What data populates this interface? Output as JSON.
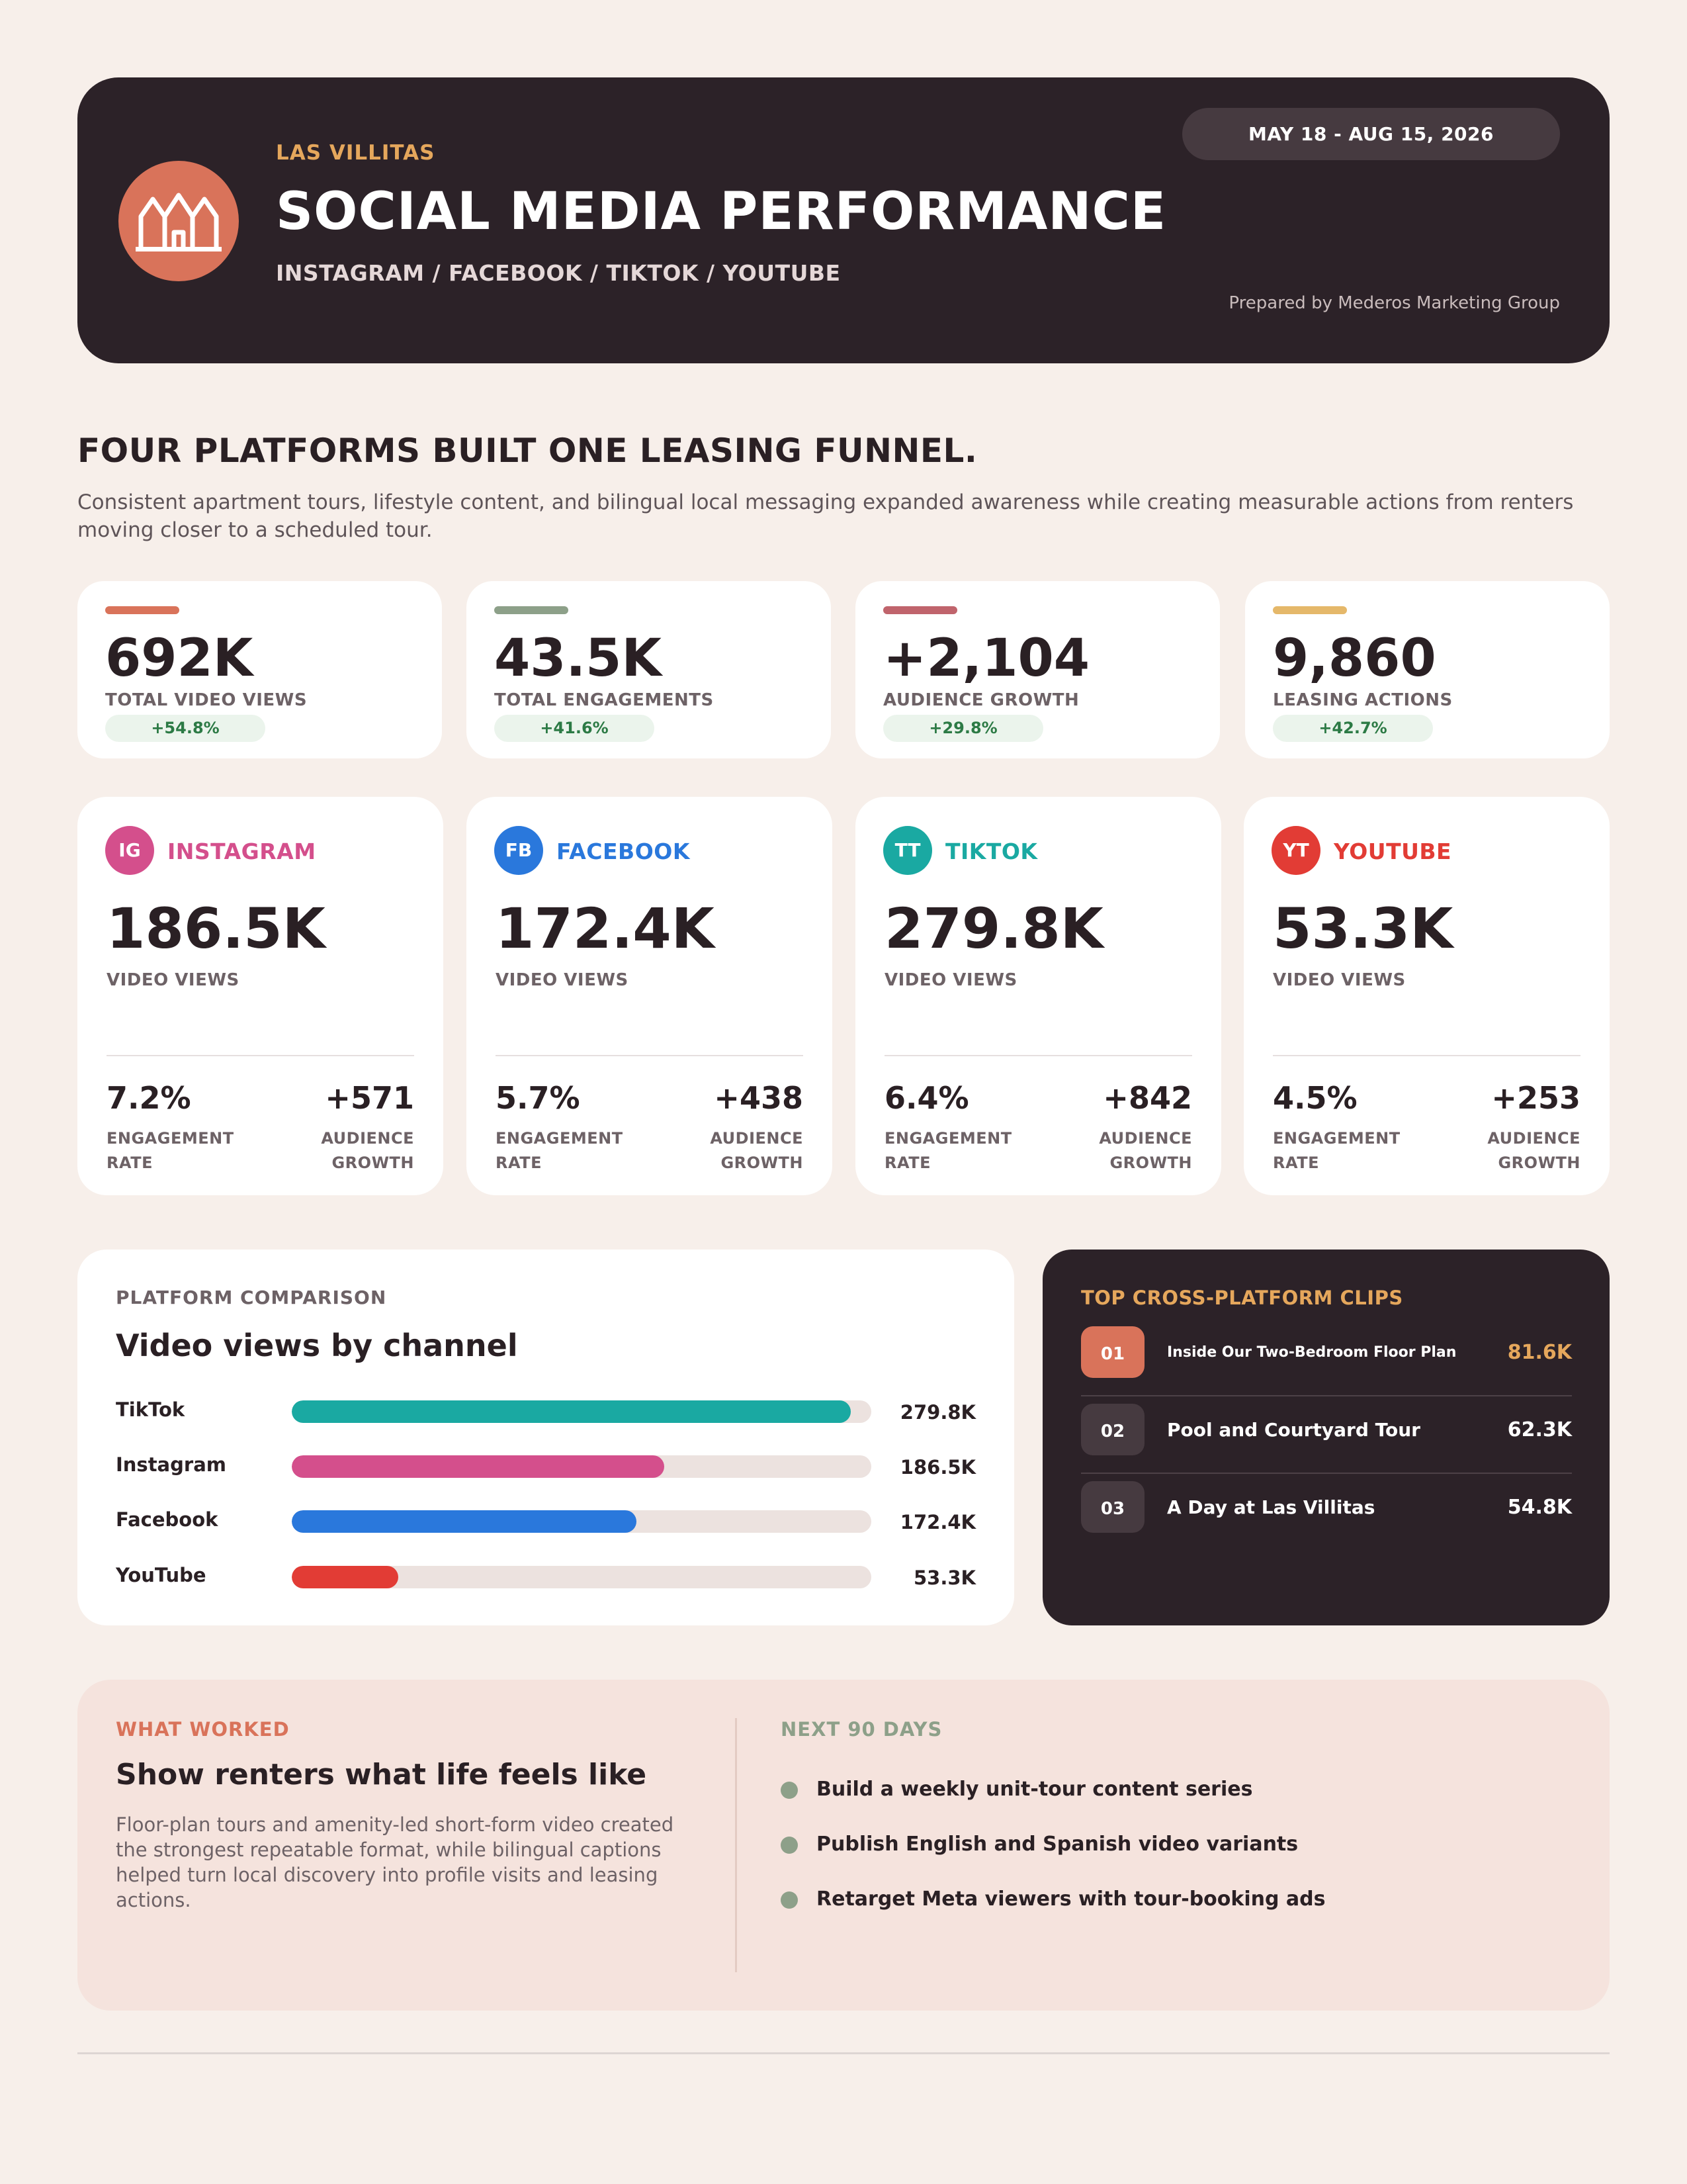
{
  "header": {
    "brand": "LAS VILLITAS",
    "title": "SOCIAL MEDIA PERFORMANCE",
    "subtitle": "INSTAGRAM / FACEBOOK / TIKTOK / YOUTUBE",
    "date_range": "MAY 18 - AUG 15, 2026",
    "prepared_by": "Prepared by Mederos Marketing Group",
    "logo_icon": "houses-icon",
    "colors": {
      "background": "#2c2228",
      "accent": "#d9735a",
      "brand": "#e5a75c"
    }
  },
  "intro": {
    "headline": "FOUR PLATFORMS BUILT ONE LEASING FUNNEL.",
    "body": "Consistent apartment tours, lifestyle content, and bilingual local messaging expanded awareness while creating measurable actions from renters moving closer to a scheduled tour."
  },
  "kpis": [
    {
      "value": "692K",
      "label": "TOTAL VIDEO VIEWS",
      "delta": "+54.8%",
      "color": "#d9735a"
    },
    {
      "value": "43.5K",
      "label": "TOTAL ENGAGEMENTS",
      "delta": "+41.6%",
      "color": "#8da089"
    },
    {
      "value": "+2,104",
      "label": "AUDIENCE GROWTH",
      "delta": "+29.8%",
      "color": "#c0646c"
    },
    {
      "value": "9,860",
      "label": "LEASING ACTIONS",
      "delta": "+42.7%",
      "color": "#e5b86a"
    }
  ],
  "platforms": [
    {
      "badge": "IG",
      "name": "INSTAGRAM",
      "color": "#d44f8c",
      "views": "186.5K",
      "views_label": "VIDEO VIEWS",
      "engagement_rate": "7.2%",
      "engagement_label": "ENGAGEMENT RATE",
      "audience_growth": "+571",
      "audience_label": "AUDIENCE GROWTH"
    },
    {
      "badge": "FB",
      "name": "FACEBOOK",
      "color": "#2a78dc",
      "views": "172.4K",
      "views_label": "VIDEO VIEWS",
      "engagement_rate": "5.7%",
      "engagement_label": "ENGAGEMENT RATE",
      "audience_growth": "+438",
      "audience_label": "AUDIENCE GROWTH"
    },
    {
      "badge": "TT",
      "name": "TIKTOK",
      "color": "#1aa9a2",
      "views": "279.8K",
      "views_label": "VIDEO VIEWS",
      "engagement_rate": "6.4%",
      "engagement_label": "ENGAGEMENT RATE",
      "audience_growth": "+842",
      "audience_label": "AUDIENCE GROWTH"
    },
    {
      "badge": "YT",
      "name": "YOUTUBE",
      "color": "#e23c35",
      "views": "53.3K",
      "views_label": "VIDEO VIEWS",
      "engagement_rate": "4.5%",
      "engagement_label": "ENGAGEMENT RATE",
      "audience_growth": "+253",
      "audience_label": "AUDIENCE GROWTH"
    }
  ],
  "comparison": {
    "eyebrow": "PLATFORM COMPARISON",
    "title": "Video views by channel"
  },
  "chart_data": {
    "type": "bar",
    "title": "Video views by channel",
    "categories": [
      "TikTok",
      "Instagram",
      "Facebook",
      "YouTube"
    ],
    "values": [
      279.8,
      186.5,
      172.4,
      53.3
    ],
    "value_labels": [
      "279.8K",
      "186.5K",
      "172.4K",
      "53.3K"
    ],
    "colors": [
      "#1aa9a2",
      "#d44f8c",
      "#2a78dc",
      "#e23c35"
    ],
    "xlim": [
      0,
      290
    ],
    "orientation": "horizontal"
  },
  "clips": {
    "eyebrow": "TOP CROSS-PLATFORM CLIPS",
    "items": [
      {
        "rank": "01",
        "title": "Inside Our Two-Bedroom Floor Plan",
        "views": "81.6K"
      },
      {
        "rank": "02",
        "title": "Pool and Courtyard Tour",
        "views": "62.3K"
      },
      {
        "rank": "03",
        "title": "A Day at Las Villitas",
        "views": "54.8K"
      }
    ]
  },
  "insights": {
    "what_worked": {
      "eyebrow": "WHAT WORKED",
      "title": "Show renters what life feels like",
      "body": "Floor-plan tours and amenity-led short-form video created the strongest repeatable format, while bilingual captions helped turn local discovery into profile visits and leasing actions."
    },
    "next_90_days": {
      "eyebrow": "NEXT 90 DAYS",
      "items": [
        "Build a weekly unit-tour content series",
        "Publish English and Spanish video variants",
        "Retarget Meta viewers with tour-booking ads"
      ]
    }
  }
}
